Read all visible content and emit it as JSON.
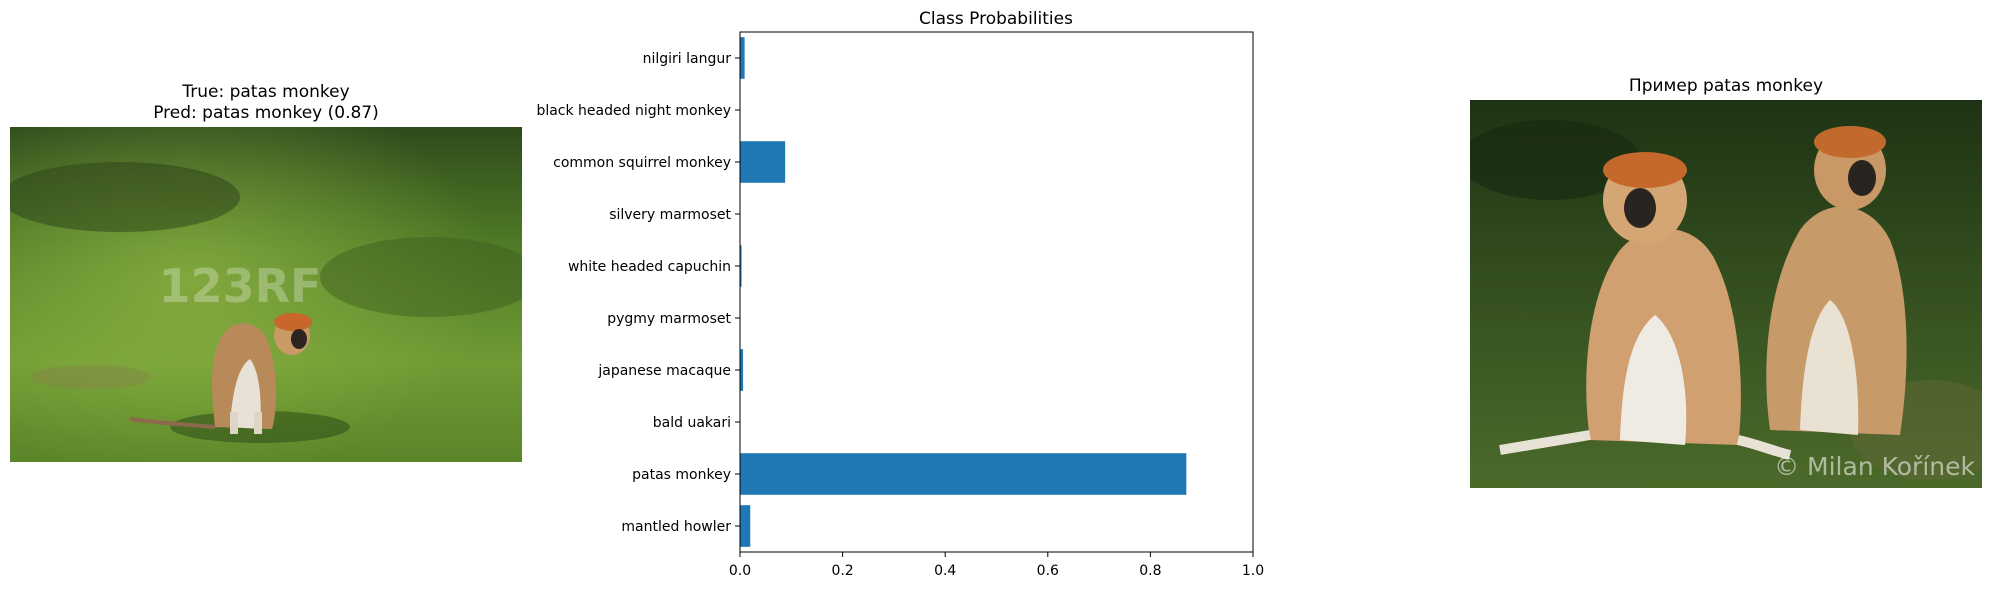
{
  "left_panel": {
    "title_line1": "True: patas monkey",
    "title_line2": "Pred: patas monkey (0.87)",
    "watermark": "123RF"
  },
  "right_panel": {
    "title": "Пример patas monkey",
    "watermark": "© Milan Kořínek"
  },
  "colors": {
    "bar": "#1f77b4"
  },
  "chart_data": {
    "type": "bar",
    "orientation": "horizontal",
    "title": "Class Probabilities",
    "categories": [
      "mantled howler",
      "patas monkey",
      "bald uakari",
      "japanese macaque",
      "pygmy marmoset",
      "white headed capuchin",
      "silvery marmoset",
      "common squirrel monkey",
      "black headed night monkey",
      "nilgiri langur"
    ],
    "values": [
      0.02,
      0.87,
      0.0,
      0.006,
      0.0,
      0.003,
      0.0,
      0.088,
      0.0,
      0.009
    ],
    "xlim": [
      0,
      1.0
    ],
    "xticks": [
      "0.0",
      "0.2",
      "0.4",
      "0.6",
      "0.8",
      "1.0"
    ],
    "xlabel": "",
    "ylabel": "",
    "grid": false
  }
}
